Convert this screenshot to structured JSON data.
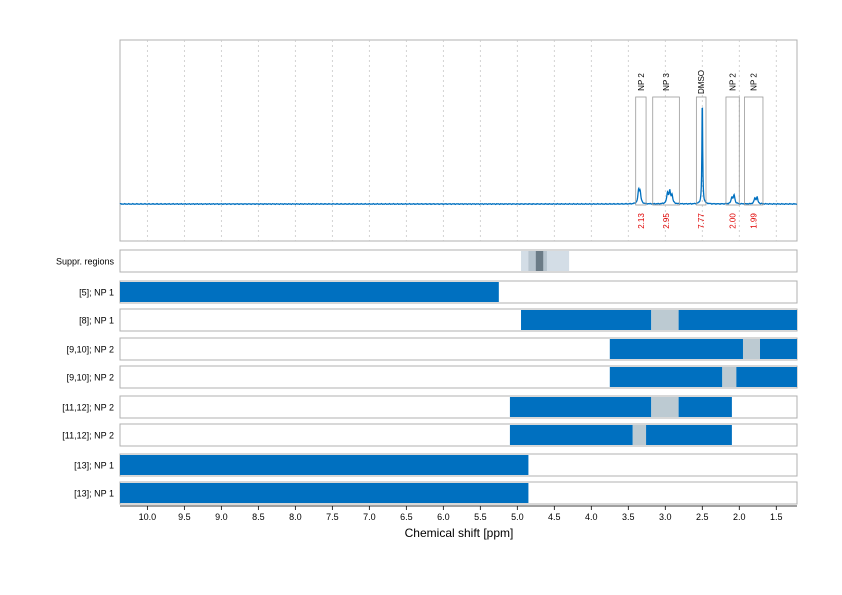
{
  "chart_data": {
    "type": "line",
    "xlabel": "Chemical shift [ppm]",
    "xlim": [
      10.37,
      1.22
    ],
    "x_reversed": true,
    "x_ticks": [
      "10.0",
      "9.5",
      "9.0",
      "8.5",
      "8.0",
      "7.5",
      "7.0",
      "6.5",
      "6.0",
      "5.5",
      "5.0",
      "4.5",
      "4.0",
      "3.5",
      "3.0",
      "2.5",
      "2.0",
      "1.5"
    ],
    "grid": "vertical dashed",
    "spectrum": {
      "baseline": 0,
      "peaks": [
        {
          "x": 3.36,
          "y": 0.12
        },
        {
          "x": 3.34,
          "y": 0.1
        },
        {
          "x": 2.97,
          "y": 0.1
        },
        {
          "x": 2.94,
          "y": 0.11
        },
        {
          "x": 2.91,
          "y": 0.08
        },
        {
          "x": 2.5,
          "y": 1.0
        },
        {
          "x": 2.1,
          "y": 0.06
        },
        {
          "x": 2.07,
          "y": 0.08
        },
        {
          "x": 1.79,
          "y": 0.05
        },
        {
          "x": 1.76,
          "y": 0.06
        }
      ]
    },
    "annotations": [
      {
        "label": "NP 2",
        "from": 3.4,
        "to": 3.26,
        "integral": "2.13"
      },
      {
        "label": "NP 3",
        "from": 3.17,
        "to": 2.81,
        "integral": "2.95"
      },
      {
        "label": "DMSO",
        "from": 2.58,
        "to": 2.45,
        "integral": "7.77"
      },
      {
        "label": "NP 2",
        "from": 2.18,
        "to": 2.0,
        "integral": "2.00"
      },
      {
        "label": "NP 2",
        "from": 1.93,
        "to": 1.68,
        "integral": "1.99"
      }
    ],
    "rows": [
      {
        "label": "Suppr. regions",
        "bars": [
          {
            "from": 4.95,
            "to": 4.3,
            "color": "#d3dde6"
          },
          {
            "from": 4.85,
            "to": 4.6,
            "color": "#b7c4ce"
          },
          {
            "from": 4.75,
            "to": 4.65,
            "color": "#6b7b86"
          }
        ]
      },
      {
        "label": "[5]; NP 1",
        "bars": [
          {
            "from": 10.37,
            "to": 5.25,
            "color": "#0070c0"
          }
        ]
      },
      {
        "label": "[8]; NP 1",
        "bars": [
          {
            "from": 4.95,
            "to": 3.19,
            "color": "#0070c0"
          },
          {
            "from": 3.19,
            "to": 2.82,
            "color": "#bccad2"
          },
          {
            "from": 2.82,
            "to": 1.22,
            "color": "#0070c0"
          }
        ]
      },
      {
        "label": "[9,10]; NP 2",
        "bars": [
          {
            "from": 3.75,
            "to": 1.95,
            "color": "#0070c0"
          },
          {
            "from": 1.95,
            "to": 1.72,
            "color": "#bccad2"
          },
          {
            "from": 1.72,
            "to": 1.22,
            "color": "#0070c0"
          }
        ]
      },
      {
        "label": "[9,10]; NP 2",
        "bars": [
          {
            "from": 3.75,
            "to": 2.23,
            "color": "#0070c0"
          },
          {
            "from": 2.23,
            "to": 2.04,
            "color": "#bccad2"
          },
          {
            "from": 2.04,
            "to": 1.22,
            "color": "#0070c0"
          }
        ]
      },
      {
        "label": "[11,12]; NP 2",
        "bars": [
          {
            "from": 5.1,
            "to": 3.19,
            "color": "#0070c0"
          },
          {
            "from": 3.19,
            "to": 2.82,
            "color": "#bccad2"
          },
          {
            "from": 2.82,
            "to": 2.1,
            "color": "#0070c0"
          }
        ]
      },
      {
        "label": "[11,12]; NP 2",
        "bars": [
          {
            "from": 5.1,
            "to": 3.44,
            "color": "#0070c0"
          },
          {
            "from": 3.44,
            "to": 3.26,
            "color": "#bccad2"
          },
          {
            "from": 3.26,
            "to": 2.1,
            "color": "#0070c0"
          }
        ]
      },
      {
        "label": "[13]; NP 1",
        "bars": [
          {
            "from": 10.37,
            "to": 4.85,
            "color": "#0070c0"
          }
        ]
      },
      {
        "label": "[13]; NP 1",
        "bars": [
          {
            "from": 10.37,
            "to": 4.85,
            "color": "#0070c0"
          }
        ]
      }
    ],
    "colors": {
      "spectrum": "#0070c0",
      "integral_text": "#e00000",
      "panel_border": "#b0b0b0",
      "grid": "#c8c8c8"
    }
  }
}
